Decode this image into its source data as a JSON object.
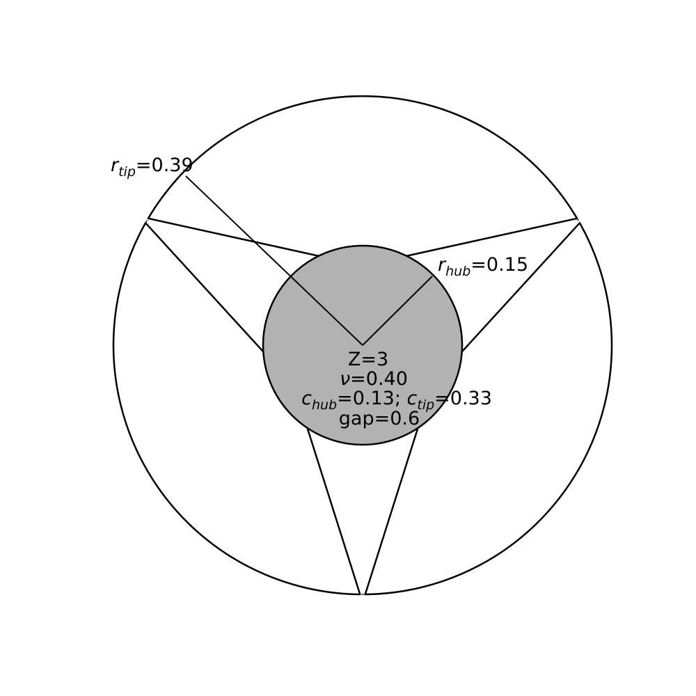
{
  "diagram": {
    "blade_count": 3,
    "hub_radius": 0.15,
    "tip_radius": 0.39,
    "pitch_ratio": 0.4,
    "chord_hub": 0.13,
    "chord_tip": 0.33,
    "gap": 0.6,
    "colors": {
      "hub_fill": "#b2b2b2",
      "stroke": "#000000",
      "background": "#ffffff"
    }
  },
  "labels": {
    "r_tip": {
      "symbol": "r",
      "sub": "tip",
      "value": "=0.39"
    },
    "r_hub": {
      "symbol": "r",
      "sub": "hub",
      "value": "=0.15"
    },
    "center": {
      "line1": "Z=3",
      "line2": "ν=0.40",
      "c_hub_symbol": "c",
      "c_hub_sub": "hub",
      "c_hub_value": "=0.13; ",
      "c_tip_symbol": "c",
      "c_tip_sub": "tip",
      "c_tip_value": "=0.33",
      "line4": "gap=0.6"
    }
  }
}
